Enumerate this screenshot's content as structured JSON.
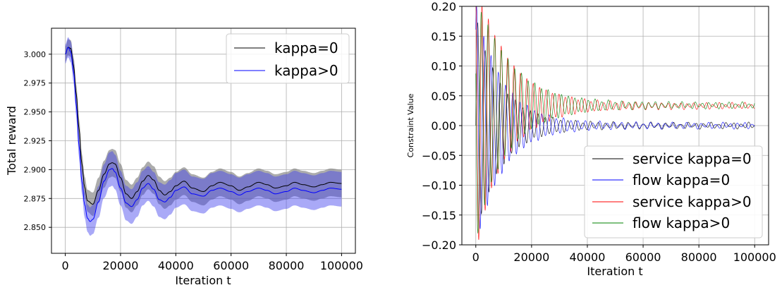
{
  "chart_data": [
    {
      "type": "line",
      "title": "",
      "xlabel": "Iteration t",
      "ylabel": "Total reward",
      "xlim": [
        -5000,
        105000
      ],
      "ylim": [
        2.8275,
        3.0225
      ],
      "xticks": [
        0,
        20000,
        40000,
        60000,
        80000,
        100000
      ],
      "xtick_labels": [
        "0",
        "20000",
        "40000",
        "60000",
        "80000",
        "100000"
      ],
      "yticks": [
        2.85,
        2.875,
        2.9,
        2.925,
        2.95,
        2.975,
        3.0
      ],
      "ytick_labels": [
        "2.850",
        "2.875",
        "2.900",
        "2.925",
        "2.950",
        "2.975",
        "3.000"
      ],
      "grid": true,
      "legend_position": "top-right",
      "series": [
        {
          "name": "kappa=0",
          "color": "#000000",
          "band_color": "#808080",
          "x": [
            0,
            1000,
            2000,
            3000,
            4000,
            5000,
            6000,
            7000,
            8000,
            10000,
            12000,
            14000,
            16000,
            17000,
            18000,
            20000,
            22000,
            24000,
            26000,
            28000,
            30000,
            32000,
            34000,
            36000,
            38000,
            40000,
            43000,
            46000,
            50000,
            53000,
            56000,
            60000,
            63000,
            66000,
            70000,
            73000,
            76000,
            80000,
            83000,
            86000,
            90000,
            93000,
            96000,
            100000
          ],
          "values": [
            3.0,
            3.006,
            3.005,
            2.99,
            2.965,
            2.935,
            2.905,
            2.885,
            2.873,
            2.87,
            2.882,
            2.896,
            2.905,
            2.906,
            2.905,
            2.893,
            2.879,
            2.875,
            2.881,
            2.89,
            2.895,
            2.891,
            2.882,
            2.878,
            2.881,
            2.886,
            2.89,
            2.884,
            2.881,
            2.886,
            2.889,
            2.886,
            2.882,
            2.885,
            2.889,
            2.887,
            2.884,
            2.886,
            2.889,
            2.887,
            2.885,
            2.887,
            2.889,
            2.888
          ],
          "band_halfwidth": 0.012
        },
        {
          "name": "kappa>0",
          "color": "#0000ff",
          "band_color": "#4040ee",
          "x": [
            0,
            1000,
            2000,
            3000,
            4000,
            5000,
            6000,
            7000,
            8000,
            9000,
            10000,
            12000,
            14000,
            16000,
            17000,
            18000,
            20000,
            22000,
            24000,
            26000,
            28000,
            30000,
            32000,
            34000,
            36000,
            38000,
            40000,
            43000,
            46000,
            50000,
            53000,
            56000,
            60000,
            63000,
            66000,
            70000,
            73000,
            76000,
            80000,
            83000,
            86000,
            90000,
            93000,
            96000,
            100000
          ],
          "values": [
            3.0,
            3.006,
            3.002,
            2.985,
            2.955,
            2.92,
            2.89,
            2.87,
            2.858,
            2.855,
            2.857,
            2.872,
            2.89,
            2.9,
            2.901,
            2.898,
            2.884,
            2.871,
            2.868,
            2.874,
            2.884,
            2.888,
            2.883,
            2.874,
            2.872,
            2.876,
            2.882,
            2.885,
            2.879,
            2.877,
            2.882,
            2.884,
            2.881,
            2.878,
            2.881,
            2.884,
            2.882,
            2.879,
            2.881,
            2.884,
            2.882,
            2.88,
            2.882,
            2.884,
            2.883
          ],
          "band_halfwidth": 0.015
        }
      ]
    },
    {
      "type": "line",
      "title": "",
      "xlabel": "Iteration t",
      "ylabel": "Constraint Value",
      "xlim": [
        -5000,
        105000
      ],
      "ylim": [
        -0.2,
        0.2
      ],
      "xticks": [
        0,
        20000,
        40000,
        60000,
        80000,
        100000
      ],
      "xtick_labels": [
        "0",
        "20000",
        "40000",
        "60000",
        "80000",
        "100000"
      ],
      "yticks": [
        -0.2,
        -0.15,
        -0.1,
        -0.05,
        0.0,
        0.05,
        0.1,
        0.15,
        0.2
      ],
      "ytick_labels": [
        "−0.20",
        "−0.15",
        "−0.10",
        "−0.05",
        "0.00",
        "0.05",
        "0.10",
        "0.15",
        "0.20"
      ],
      "grid": true,
      "legend_position": "bottom-right",
      "series": [
        {
          "name": "service kappa=0",
          "color": "#000000",
          "amplitude": 0.18,
          "decay_scale": 9000,
          "period": 2700,
          "steady_value": 0.0
        },
        {
          "name": "flow kappa=0",
          "color": "#0000ff",
          "amplitude": 0.2,
          "decay_scale": 9500,
          "period": 2600,
          "steady_value": 0.0
        },
        {
          "name": "service kappa>0",
          "color": "#ff0000",
          "amplitude": 0.22,
          "decay_scale": 11000,
          "period": 2300,
          "steady_value": 0.033
        },
        {
          "name": "flow kappa>0",
          "color": "#008000",
          "amplitude": 0.2,
          "decay_scale": 11500,
          "period": 2400,
          "steady_value": 0.034
        }
      ]
    }
  ]
}
